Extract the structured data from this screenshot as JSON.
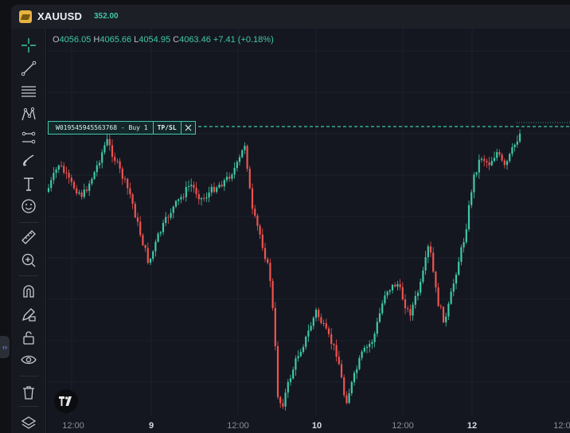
{
  "header": {
    "symbol": "XAUUSD",
    "price_badge": "352.00"
  },
  "ohlc": {
    "o_label": "O",
    "o": "4056.05",
    "h_label": "H",
    "h": "4065.66",
    "l_label": "L",
    "l": "4054.95",
    "c_label": "C",
    "c": "4063.46",
    "change": "+7.41 (+0.18%)"
  },
  "order": {
    "label": "W019545945563768 - Buy 1",
    "tpsl": "TP/SL",
    "close_icon": "close-icon"
  },
  "tools": [
    {
      "name": "crosshair-icon"
    },
    {
      "name": "trend-line-icon"
    },
    {
      "name": "fib-levels-icon"
    },
    {
      "name": "pattern-icon"
    },
    {
      "name": "projection-icon"
    },
    {
      "name": "brush-icon"
    },
    {
      "name": "text-icon"
    },
    {
      "name": "emoji-icon"
    },
    {
      "name": "ruler-icon"
    },
    {
      "name": "zoom-in-icon"
    },
    {
      "name": "magnet-icon"
    },
    {
      "name": "lock-drawing-icon"
    },
    {
      "name": "lock-icon"
    },
    {
      "name": "eye-icon"
    },
    {
      "name": "trash-icon"
    },
    {
      "name": "layers-icon"
    }
  ],
  "x_axis": {
    "labels": [
      {
        "text": "12:00",
        "bold": false
      },
      {
        "text": "9",
        "bold": true
      },
      {
        "text": "12:00",
        "bold": false
      },
      {
        "text": "10",
        "bold": true
      },
      {
        "text": "12:00",
        "bold": false
      },
      {
        "text": "12",
        "bold": true
      },
      {
        "text": "12:0",
        "bold": false
      }
    ]
  },
  "colors": {
    "up": "#3fc9a8",
    "down": "#ef5350",
    "accent": "#3fc9a8"
  }
}
